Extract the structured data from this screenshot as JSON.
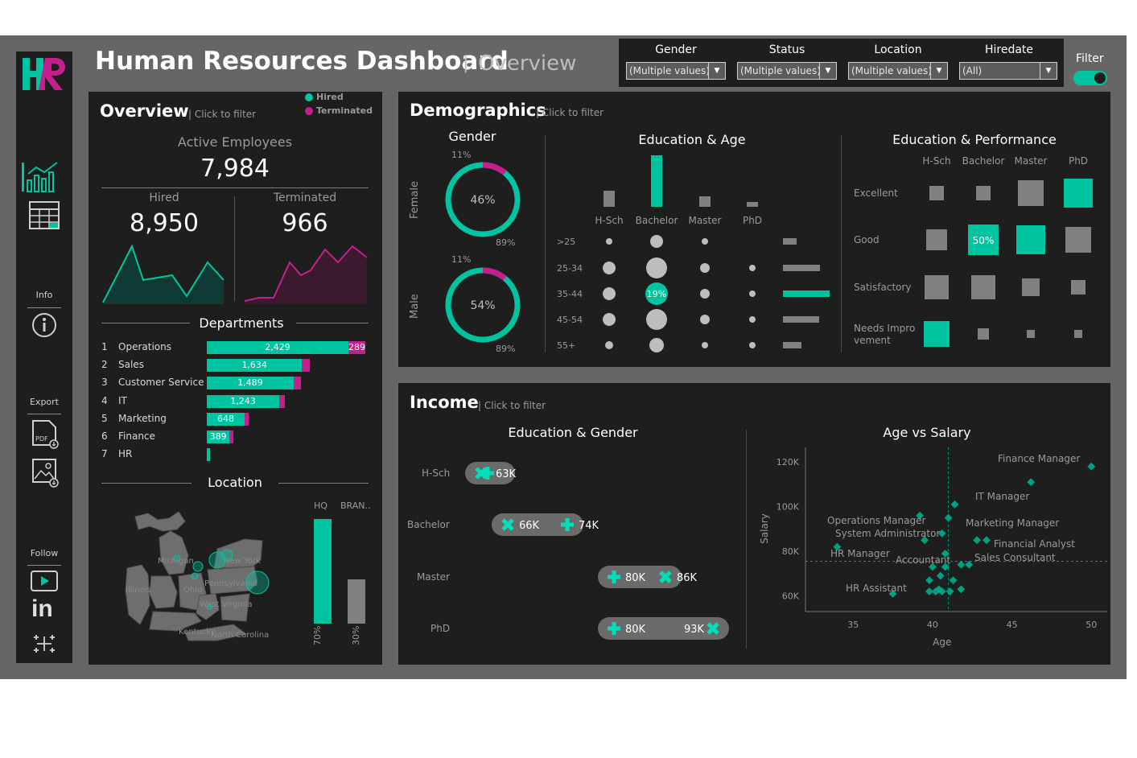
{
  "header": {
    "title": "Human Resources Dashboard",
    "separator": "|",
    "subtitle": "Overview"
  },
  "filters": {
    "gender": {
      "label": "Gender",
      "value": "(Multiple values)"
    },
    "status": {
      "label": "Status",
      "value": "(Multiple values)"
    },
    "location": {
      "label": "Location",
      "value": "(Multiple values)"
    },
    "hiredate": {
      "label": "Hiredate",
      "value": "(All)"
    },
    "toggle_label": "Filter"
  },
  "nav": {
    "info": "Info",
    "export": "Export",
    "follow": "Follow"
  },
  "overview": {
    "title": "Overview",
    "hint": "| Click to filter",
    "legend_hired": "Hired",
    "legend_terminated": "Terminated",
    "active_label": "Active Employees",
    "active_value": "7,984",
    "hired_label": "Hired",
    "hired_value": "8,950",
    "terminated_label": "Terminated",
    "terminated_value": "966",
    "departments_title": "Departments",
    "departments": [
      {
        "rank": "1",
        "name": "Operations",
        "hired": "2,429",
        "term": "289"
      },
      {
        "rank": "2",
        "name": "Sales",
        "hired": "1,634",
        "term": ""
      },
      {
        "rank": "3",
        "name": "Customer Service",
        "hired": "1,489",
        "term": ""
      },
      {
        "rank": "4",
        "name": "IT",
        "hired": "1,243",
        "term": ""
      },
      {
        "rank": "5",
        "name": "Marketing",
        "hired": "648",
        "term": ""
      },
      {
        "rank": "6",
        "name": "Finance",
        "hired": "389",
        "term": ""
      },
      {
        "rank": "7",
        "name": "HR",
        "hired": "",
        "term": ""
      }
    ],
    "dept_values": [
      2429,
      1634,
      1489,
      1243,
      648,
      389,
      60
    ],
    "dept_term_values": [
      289,
      130,
      120,
      100,
      50,
      35,
      0
    ],
    "location_title": "Location",
    "loc_hq": "HQ",
    "loc_branch": "BRAN..",
    "loc_hq_pct": "70%",
    "loc_branch_pct": "30%",
    "loc_hq_fraction": 0.7,
    "loc_branch_fraction": 0.3,
    "map_labels": [
      "Michigan",
      "New York",
      "Illinois",
      "Pennsylvania",
      "West Virginia",
      "Kentucky",
      "Ohio",
      "North Carolina"
    ]
  },
  "demographics": {
    "title": "Demographics",
    "hint": "| Click to filter",
    "gender_title": "Gender",
    "female_label": "Female",
    "male_label": "Male",
    "female_pct": "46%",
    "female_small": "11%",
    "female_big": "89%",
    "male_pct": "54%",
    "male_small": "11%",
    "male_big": "89%",
    "female_fraction": 0.11,
    "male_fraction": 0.11,
    "edu_age_title": "Education & Age",
    "edu_levels": [
      "H-Sch",
      "Bachelor",
      "Master",
      "PhD"
    ],
    "edu_totals": [
      20,
      64,
      13,
      6
    ],
    "age_groups": [
      ">25",
      "25-34",
      "35-44",
      "45-54",
      "55+"
    ],
    "age_bar_values": [
      17,
      46,
      58,
      45,
      23
    ],
    "highlight_label": "19%",
    "edu_perf_title": "Education & Performance",
    "perf_levels": [
      "Excellent",
      "Good",
      "Satisfactory",
      "Needs Impro vement"
    ],
    "perf_highlight": "50%"
  },
  "income": {
    "title": "Income",
    "hint": "| Click to filter",
    "edu_gender_title": "Education & Gender",
    "rows": [
      {
        "label": "H-Sch",
        "a": "63K",
        "b": ""
      },
      {
        "label": "Bachelor",
        "a": "66K",
        "b": "74K"
      },
      {
        "label": "Master",
        "a": "80K",
        "b": "86K"
      },
      {
        "label": "PhD",
        "a": "80K",
        "b": "93K"
      }
    ],
    "age_salary_title": "Age vs Salary",
    "y_axis": "Salary",
    "x_axis": "Age",
    "y_ticks": [
      "120K",
      "100K",
      "80K",
      "60K"
    ],
    "x_ticks": [
      "35",
      "40",
      "45",
      "50"
    ],
    "job_labels": [
      "Finance Manager",
      "IT Manager",
      "Operations Manager",
      "Marketing Manager",
      "System Administrator",
      "Financial Analyst",
      "HR Manager",
      "Accountant",
      "Sales Consultant",
      "HR Assistant"
    ]
  },
  "colors": {
    "teal": "#00c4a0",
    "magenta": "#c41f8c",
    "panel": "#1e1e1e",
    "frame": "#666666",
    "grey": "#808080"
  }
}
